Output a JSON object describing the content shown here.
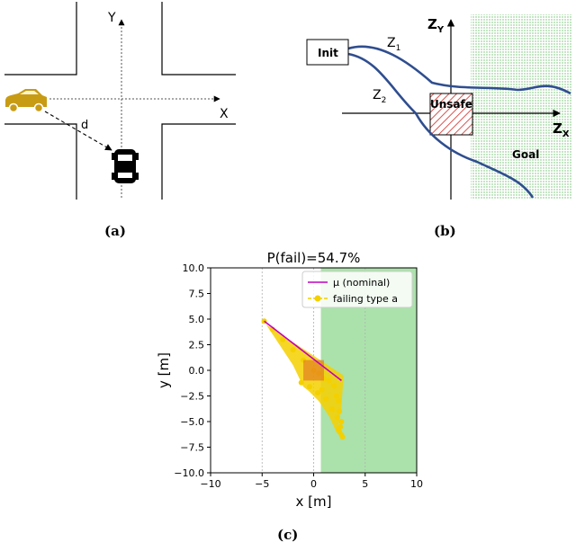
{
  "panel_a": {
    "caption": "(a)",
    "axis_y": "Y",
    "axis_x": "X",
    "distance_label": "d"
  },
  "panel_b": {
    "caption": "(b)",
    "init_label": "Init",
    "z1_label": "Z",
    "z1_sub": "1",
    "z2_label": "Z",
    "z2_sub": "2",
    "zy_label": "Z",
    "zy_sub": "Y",
    "zx_label": "Z",
    "zx_sub": "X",
    "unsafe_label": "Unsafe",
    "goal_label": "Goal"
  },
  "panel_c": {
    "caption": "(c)"
  },
  "colors": {
    "car": "#c89b14",
    "goal_green": "#8fd88f",
    "fail_yellow": "#f4d000",
    "nominal_line": "#c000c0",
    "trajectory_blue": "#2f4e8f",
    "unsafe_red": "#d9534f"
  },
  "chart_data": {
    "type": "scatter",
    "title": "P(fail)=54.7%",
    "xlabel": "x [m]",
    "ylabel": "y [m]",
    "xlim": [
      -10,
      10
    ],
    "ylim": [
      -10,
      10
    ],
    "xticks": [
      -10,
      -5,
      0,
      5,
      10
    ],
    "yticks": [
      10.0,
      7.5,
      5.0,
      2.5,
      0.0,
      -2.5,
      -5.0,
      -7.5,
      -10.0
    ],
    "xtick_labels": [
      "−10",
      "−5",
      "0",
      "5",
      "10"
    ],
    "ytick_labels": [
      "10.0",
      "7.5",
      "5.0",
      "2.5",
      "0.0",
      "−2.5",
      "−5.0",
      "−7.5",
      "−10.0"
    ],
    "grid": true,
    "legend_position": "top-right",
    "goal_region": {
      "x_min": 0.7,
      "x_max": 10,
      "y_min": -10,
      "y_max": 10
    },
    "unsafe_region": {
      "x_min": -1.0,
      "x_max": 1.0,
      "y_min": -1.0,
      "y_max": 1.0
    },
    "series": [
      {
        "name": "μ (nominal)",
        "kind": "line",
        "x": [
          -4.8,
          2.7
        ],
        "y": [
          4.8,
          -1.0
        ]
      },
      {
        "name": "failing type a",
        "kind": "scatter",
        "fan_polygon": {
          "x": [
            -4.9,
            -4.8,
            2.9,
            2.8,
            2.7,
            2.5,
            2.2,
            1.5,
            0.5,
            -0.5,
            -1.0,
            -2.0
          ],
          "y": [
            4.9,
            4.6,
            -0.5,
            -2.0,
            -3.5,
            -5.0,
            -6.0,
            -4.5,
            -3.0,
            -2.0,
            -1.6,
            0.5
          ]
        },
        "x": [
          -4.8,
          -4.0,
          -3.0,
          -2.0,
          -1.0,
          0.0,
          0.5,
          1.0,
          1.5,
          2.0,
          2.2,
          2.4,
          2.5,
          2.7,
          2.6,
          2.5,
          2.7,
          2.8,
          1.8,
          1.2,
          0.4,
          -0.4,
          -1.2,
          0.8,
          2.3,
          2.4
        ],
        "y": [
          4.8,
          4.0,
          3.0,
          2.0,
          1.0,
          0.0,
          -0.3,
          -0.8,
          -1.0,
          -1.5,
          -2.5,
          -3.0,
          -4.0,
          -5.0,
          -5.5,
          -6.0,
          -6.3,
          -6.5,
          -3.8,
          -2.8,
          -2.2,
          -1.6,
          -1.2,
          -1.9,
          -4.6,
          -5.8
        ]
      }
    ]
  }
}
